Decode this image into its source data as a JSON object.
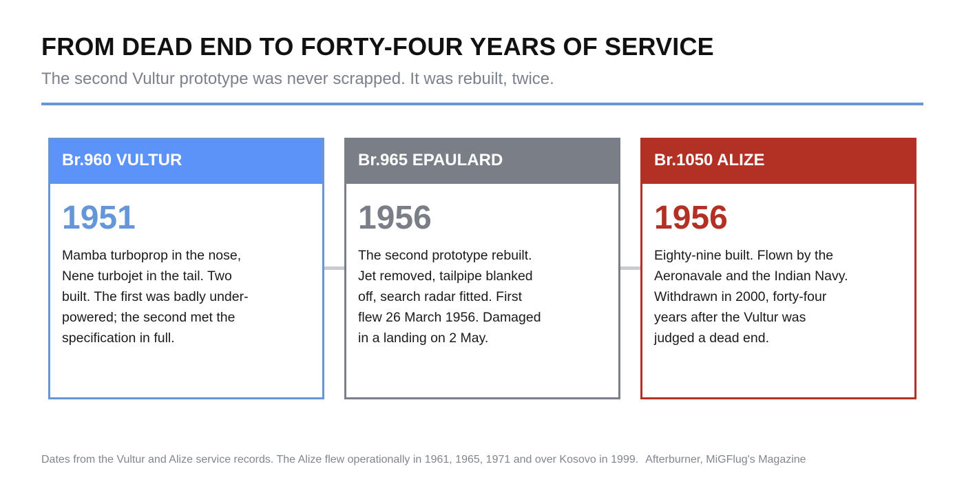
{
  "header": {
    "title": "FROM DEAD END TO FORTY-FOUR YEARS OF SERVICE",
    "subtitle": "The second Vultur prototype was never scrapped. It was rebuilt, twice."
  },
  "colors": {
    "vultur_blue": "#6496d8",
    "vultur_header": "#5c93f8",
    "epaulard_grey": "#797e87",
    "alize_red": "#b23024",
    "connector_grey": "#c8ccd2",
    "title_black": "#111111",
    "subtitle_grey": "#7b818a"
  },
  "stages": [
    {
      "name": "Br.960 VULTUR",
      "year": "1951",
      "description_lines": [
        "Mamba turboprop in the nose,",
        "Nene turbojet in the tail. Two",
        "built. The first was badly under-",
        "powered; the second met the",
        "specification in full."
      ]
    },
    {
      "name": "Br.965 EPAULARD",
      "year": "1956",
      "description_lines": [
        "The second prototype rebuilt.",
        "Jet removed, tailpipe blanked",
        "off, search radar fitted. First",
        "flew 26 March 1956. Damaged",
        "in a landing on 2 May."
      ]
    },
    {
      "name": "Br.1050 ALIZE",
      "year": "1956",
      "description_lines": [
        "Eighty-nine built. Flown by the",
        "Aeronavale and the Indian Navy.",
        "Withdrawn in 2000, forty-four",
        "years after the Vultur was",
        "judged a dead end."
      ]
    }
  ],
  "footer": {
    "note": "Dates from the Vultur and Alize service records. The Alize flew operationally in 1961, 1965, 1971 and over Kosovo in 1999.",
    "source": "Afterburner, MiGFlug's Magazine"
  }
}
